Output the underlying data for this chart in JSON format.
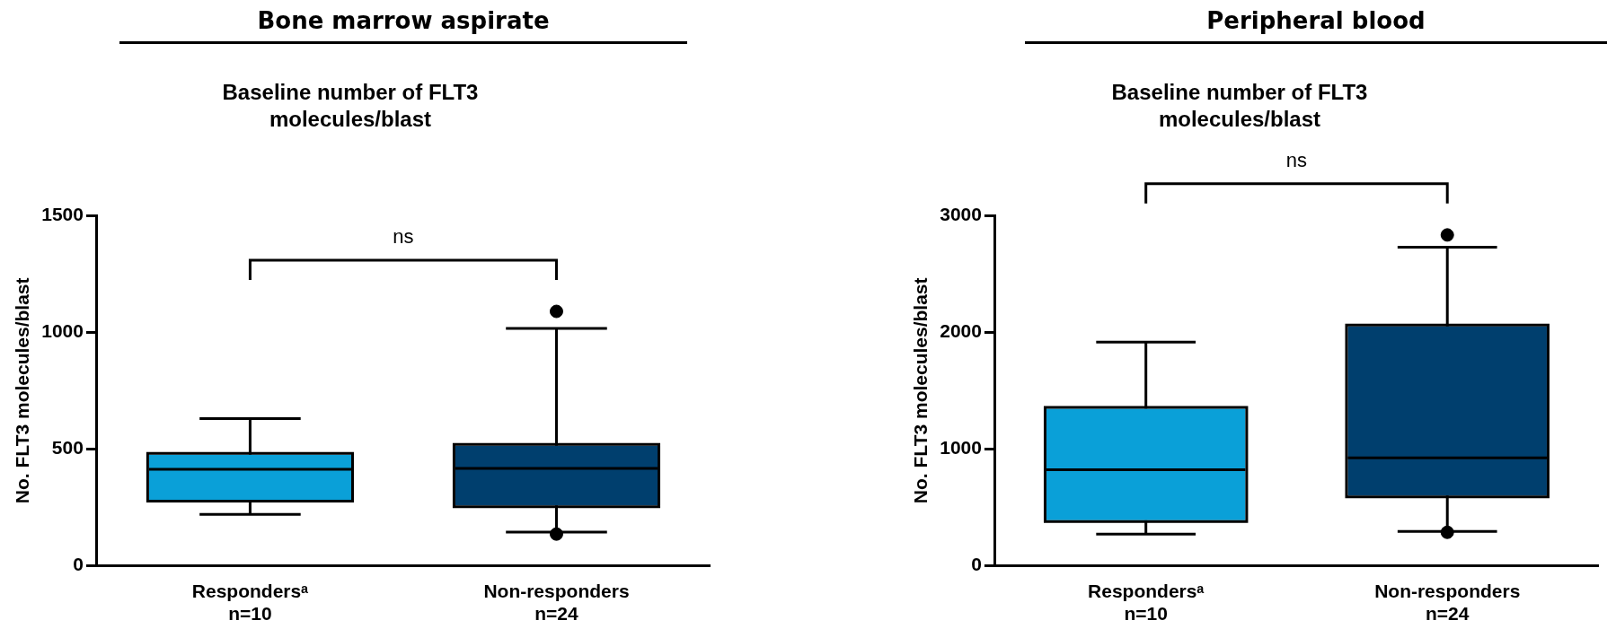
{
  "chart_data": [
    {
      "type": "box",
      "title": "Bone marrow aspirate",
      "subtitle": "Baseline number of FLT3 molecules/blast",
      "ylabel": "No. FLT3 molecules/blast",
      "categories": [
        "Respondersᵃ\nn=10",
        "Non-responders\nn=24"
      ],
      "colors": [
        "#0aa0d8",
        "#003f6e"
      ],
      "boxes": [
        {
          "low": 220,
          "q1": 283,
          "median": 413,
          "q3": 476,
          "high": 630
        },
        {
          "low": 144,
          "q1": 259,
          "median": 417,
          "q3": 514,
          "high": 1016,
          "outliers": [
            1089,
            136
          ]
        }
      ],
      "ylim": [
        0,
        1500
      ],
      "yticks": [
        0,
        500,
        1000,
        1500
      ],
      "annotations": [
        "ns"
      ],
      "legend": false,
      "grid": false
    },
    {
      "type": "box",
      "title": "Peripheral blood",
      "subtitle": "Baseline number of FLT3 molecules/blast",
      "ylabel": "No. FLT3 molecules/blast",
      "categories": [
        "Respondersᵃ\nn=10",
        "Non-responders\nn=24"
      ],
      "colors": [
        "#0aa0d8",
        "#003f6e"
      ],
      "boxes": [
        {
          "low": 271,
          "q1": 391,
          "median": 822,
          "q3": 1344,
          "high": 1915
        },
        {
          "low": 295,
          "q1": 602,
          "median": 925,
          "q3": 2050,
          "high": 2728,
          "outliers": [
            2832,
            287
          ]
        }
      ],
      "ylim": [
        0,
        3000
      ],
      "yticks": [
        0,
        1000,
        2000,
        3000
      ],
      "annotations": [
        "ns"
      ],
      "legend": false,
      "grid": false
    }
  ]
}
